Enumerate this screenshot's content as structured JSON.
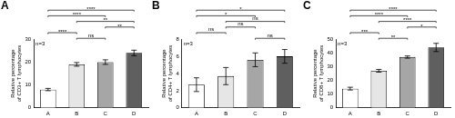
{
  "chart_data": [
    {
      "type": "bar",
      "title": "A",
      "y_label": "Relative percentage of CD3+ T lymphocytes",
      "annotation": "n=3",
      "categories": [
        "A",
        "B",
        "C",
        "D"
      ],
      "values": [
        8,
        19,
        20,
        24
      ],
      "errors": [
        0.5,
        0.8,
        1,
        1.2
      ],
      "colors": [
        "#ffffff",
        "#e6e6e6",
        "#a6a6a6",
        "#5f5f5f"
      ],
      "ylim": [
        0,
        30
      ],
      "yticks": [
        0,
        10,
        20,
        30
      ],
      "grid": false,
      "comparisons": [
        {
          "from": "A",
          "to": "D",
          "label": "****"
        },
        {
          "from": "A",
          "to": "C",
          "label": "****"
        },
        {
          "from": "B",
          "to": "D",
          "label": "**"
        },
        {
          "from": "C",
          "to": "D",
          "label": "**"
        },
        {
          "from": "A",
          "to": "B",
          "label": "****"
        },
        {
          "from": "B",
          "to": "C",
          "label": "ns"
        }
      ]
    },
    {
      "type": "bar",
      "title": "B",
      "y_label": "Relative percentage of CD4+ T lymphocytes",
      "annotation": "n=3",
      "categories": [
        "A",
        "B",
        "C",
        "D"
      ],
      "values": [
        2.7,
        3.7,
        5.6,
        6.0
      ],
      "errors": [
        0.8,
        1.0,
        0.8,
        0.8
      ],
      "colors": [
        "#ffffff",
        "#e6e6e6",
        "#a6a6a6",
        "#5f5f5f"
      ],
      "ylim": [
        0,
        8
      ],
      "yticks": [
        0,
        2,
        4,
        6,
        8
      ],
      "grid": false,
      "comparisons": [
        {
          "from": "A",
          "to": "D",
          "label": "*"
        },
        {
          "from": "A",
          "to": "C",
          "label": "*"
        },
        {
          "from": "B",
          "to": "D",
          "label": "ns"
        },
        {
          "from": "B",
          "to": "C",
          "label": "ns"
        },
        {
          "from": "A",
          "to": "B",
          "label": "ns"
        },
        {
          "from": "C",
          "to": "D",
          "label": "ns"
        }
      ]
    },
    {
      "type": "bar",
      "title": "C",
      "y_label": "Relative percentage of CD8+ T lymphocytes",
      "annotation": "n=3",
      "categories": [
        "A",
        "B",
        "C",
        "D"
      ],
      "values": [
        14,
        27,
        37,
        44
      ],
      "errors": [
        1,
        1,
        0.8,
        3
      ],
      "colors": [
        "#ffffff",
        "#e6e6e6",
        "#a6a6a6",
        "#5f5f5f"
      ],
      "ylim": [
        0,
        50
      ],
      "yticks": [
        0,
        10,
        20,
        30,
        40,
        50
      ],
      "grid": false,
      "comparisons": [
        {
          "from": "A",
          "to": "D",
          "label": "****"
        },
        {
          "from": "A",
          "to": "C",
          "label": "****"
        },
        {
          "from": "B",
          "to": "D",
          "label": "****"
        },
        {
          "from": "C",
          "to": "D",
          "label": "*"
        },
        {
          "from": "A",
          "to": "B",
          "label": "***"
        },
        {
          "from": "B",
          "to": "C",
          "label": "**"
        }
      ]
    }
  ]
}
